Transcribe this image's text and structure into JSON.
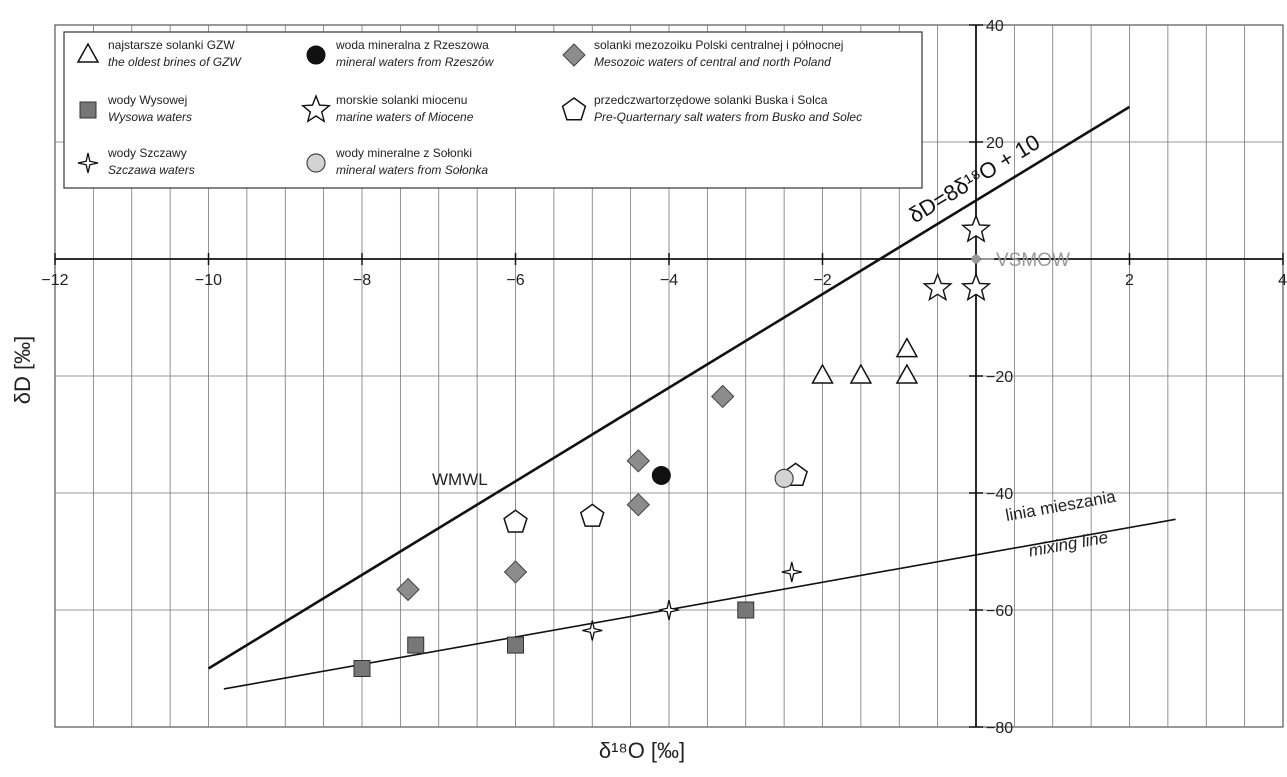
{
  "chart_data": {
    "type": "scatter",
    "xlabel": "δ¹⁸O [‰]",
    "ylabel": "δD [‰]",
    "xlim": [
      -12,
      4
    ],
    "ylim": [
      -80,
      40
    ],
    "grid": true,
    "x_ticks": [
      "−12",
      "−10",
      "−8",
      "−6",
      "−4",
      "−2",
      "2",
      "4"
    ],
    "y_ticks": [
      "40",
      "20",
      "−20",
      "−40",
      "−60",
      "−80"
    ],
    "legend_position": "top-left",
    "legend": [
      {
        "marker": "triangle",
        "pl": "najstarsze solanki GZW",
        "en": "the oldest brines of GZW"
      },
      {
        "marker": "circle-black",
        "pl": "woda mineralna z  Rzeszowa",
        "en": "mineral waters from Rzeszów"
      },
      {
        "marker": "diamond",
        "pl": "solanki mezozoiku Polski centralnej i północnej",
        "en": "Mesozoic waters of central and north Poland"
      },
      {
        "marker": "square",
        "pl": "wody Wysowej",
        "en": "Wysowa waters"
      },
      {
        "marker": "star5",
        "pl": "morskie solanki miocenu",
        "en": "marine waters of Miocene"
      },
      {
        "marker": "pentagon",
        "pl": "przedczwartorzędowe solanki Buska i Solca",
        "en": "Pre-Quarternary salt waters from Busko and Solec"
      },
      {
        "marker": "star4",
        "pl": "wody Szczawy",
        "en": "Szczawa waters"
      },
      {
        "marker": "circle-grey",
        "pl": "wody mineralne z Sołonki",
        "en": "mineral waters from Sołonka"
      }
    ],
    "series": [
      {
        "marker": "triangle",
        "points": [
          [
            -2.0,
            -20
          ],
          [
            -1.5,
            -20
          ],
          [
            -0.9,
            -20
          ],
          [
            -0.9,
            -15.5
          ]
        ]
      },
      {
        "marker": "circle-black",
        "points": [
          [
            -4.1,
            -37
          ]
        ]
      },
      {
        "marker": "diamond",
        "points": [
          [
            -3.3,
            -23.5
          ],
          [
            -4.4,
            -34.5
          ],
          [
            -4.4,
            -42
          ],
          [
            -6.0,
            -53.5
          ],
          [
            -7.4,
            -56.5
          ]
        ]
      },
      {
        "marker": "square",
        "points": [
          [
            -8.0,
            -70
          ],
          [
            -7.3,
            -66
          ],
          [
            -6.0,
            -66
          ],
          [
            -3.0,
            -60
          ]
        ]
      },
      {
        "marker": "star5",
        "points": [
          [
            0.0,
            5
          ],
          [
            -0.5,
            -5
          ],
          [
            0.0,
            -5
          ]
        ]
      },
      {
        "marker": "pentagon",
        "points": [
          [
            -6.0,
            -45
          ],
          [
            -5.0,
            -44
          ],
          [
            -2.35,
            -37
          ]
        ]
      },
      {
        "marker": "star4",
        "points": [
          [
            -2.4,
            -53.5
          ],
          [
            -4.0,
            -60
          ],
          [
            -5.0,
            -63.5
          ]
        ]
      },
      {
        "marker": "circle-grey",
        "points": [
          [
            -2.5,
            -37.5
          ]
        ]
      }
    ],
    "lines": [
      {
        "label": "δD=8δ¹⁸O + 10",
        "label2": "WMWL",
        "x": [
          -10,
          2
        ],
        "y": [
          -70,
          26
        ]
      },
      {
        "label": "linia mieszania",
        "label2": "mixing line",
        "x": [
          -9.8,
          2.6
        ],
        "y": [
          -73.5,
          -44.5
        ]
      }
    ],
    "reference_point": {
      "label": "VSMOW",
      "x": 0,
      "y": 0
    }
  }
}
